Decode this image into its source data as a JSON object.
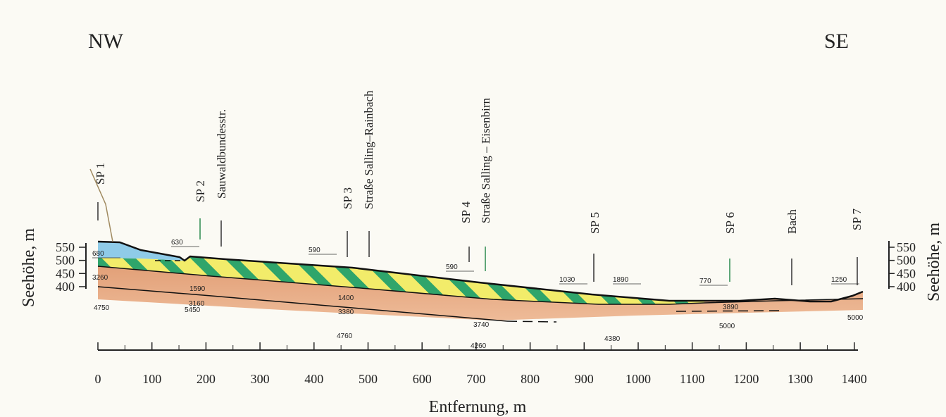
{
  "labels": {
    "left": "NW",
    "right": "SE"
  },
  "x_axis": {
    "title": "Entfernung, m",
    "ticks": [
      0,
      100,
      200,
      300,
      400,
      500,
      600,
      700,
      800,
      900,
      1000,
      1100,
      1200,
      1300,
      1400
    ]
  },
  "y_axis": {
    "title": "Seehöhe, m",
    "ticks": [
      550,
      500,
      450,
      400
    ]
  },
  "stations": [
    "SP 1",
    "SP 2",
    "Sauwaldbundesstr.",
    "SP 3",
    "Straße Salling–Rainbach",
    "SP 4",
    "Straße Salling – Eisenbirn",
    "SP 5",
    "SP 6",
    "Bach",
    "SP 7"
  ],
  "velocities": [
    680,
    630,
    590,
    590,
    1030,
    1890,
    770,
    1250,
    3260,
    1590,
    3160,
    1400,
    3380,
    3740,
    3890,
    4750,
    5450,
    4760,
    4260,
    4380,
    5000,
    5000
  ]
}
